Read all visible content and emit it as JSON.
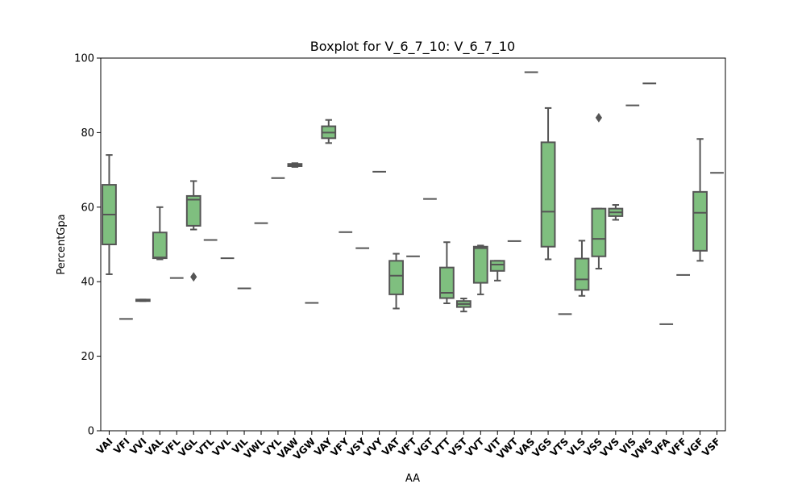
{
  "chart_data": {
    "type": "box",
    "title": "Boxplot for V_6_7_10: V_6_7_10",
    "xlabel": "AA",
    "ylabel": "PercentGpa",
    "ylim": [
      0,
      100
    ],
    "yticks": [
      0,
      20,
      40,
      60,
      80,
      100
    ],
    "grid": false,
    "box_color": "#7fbf7f",
    "line_color": "#555555",
    "categories": [
      "VAI",
      "VFI",
      "VVI",
      "VAL",
      "VFL",
      "VGL",
      "VTL",
      "VVL",
      "VIL",
      "VWL",
      "VYL",
      "VAW",
      "VGW",
      "VAY",
      "VFY",
      "VSY",
      "VVY",
      "VAT",
      "VFT",
      "VGT",
      "VTT",
      "VST",
      "VVT",
      "VIT",
      "VWT",
      "VAS",
      "VGS",
      "VTS",
      "VLS",
      "VSS",
      "VVS",
      "VIS",
      "VWS",
      "VFA",
      "VFF",
      "VGF",
      "VSF"
    ],
    "boxes": [
      {
        "label": "VAI",
        "whislo": 42,
        "q1": 50,
        "med": 58,
        "q3": 66,
        "whishi": 74,
        "fliers": []
      },
      {
        "label": "VFI",
        "whislo": 30,
        "q1": 30,
        "med": 30,
        "q3": 30,
        "whishi": 30,
        "fliers": []
      },
      {
        "label": "VVI",
        "whislo": 34.8,
        "q1": 34.8,
        "med": 35,
        "q3": 35.2,
        "whishi": 35.2,
        "fliers": []
      },
      {
        "label": "VAL",
        "whislo": 46,
        "q1": 46.3,
        "med": 46.5,
        "q3": 53.2,
        "whishi": 60,
        "fliers": []
      },
      {
        "label": "VFL",
        "whislo": 41,
        "q1": 41,
        "med": 41,
        "q3": 41,
        "whishi": 41,
        "fliers": []
      },
      {
        "label": "VGL",
        "whislo": 54,
        "q1": 55,
        "med": 62,
        "q3": 63,
        "whishi": 67,
        "fliers": [
          41.3
        ]
      },
      {
        "label": "VTL",
        "whislo": 51.2,
        "q1": 51.2,
        "med": 51.2,
        "q3": 51.2,
        "whishi": 51.2,
        "fliers": []
      },
      {
        "label": "VVL",
        "whislo": 46.3,
        "q1": 46.3,
        "med": 46.3,
        "q3": 46.3,
        "whishi": 46.3,
        "fliers": []
      },
      {
        "label": "VIL",
        "whislo": 38.2,
        "q1": 38.2,
        "med": 38.2,
        "q3": 38.2,
        "whishi": 38.2,
        "fliers": []
      },
      {
        "label": "VWL",
        "whislo": 55.7,
        "q1": 55.7,
        "med": 55.7,
        "q3": 55.7,
        "whishi": 55.7,
        "fliers": []
      },
      {
        "label": "VYL",
        "whislo": 67.8,
        "q1": 67.8,
        "med": 67.8,
        "q3": 67.8,
        "whishi": 67.8,
        "fliers": []
      },
      {
        "label": "VAW",
        "whislo": 70.8,
        "q1": 71,
        "med": 71.2,
        "q3": 71.6,
        "whishi": 71.8,
        "fliers": []
      },
      {
        "label": "VGW",
        "whislo": 34.3,
        "q1": 34.3,
        "med": 34.3,
        "q3": 34.3,
        "whishi": 34.3,
        "fliers": []
      },
      {
        "label": "VAY",
        "whislo": 77.2,
        "q1": 78.5,
        "med": 80,
        "q3": 81.7,
        "whishi": 83.4,
        "fliers": []
      },
      {
        "label": "VFY",
        "whislo": 53.3,
        "q1": 53.3,
        "med": 53.3,
        "q3": 53.3,
        "whishi": 53.3,
        "fliers": []
      },
      {
        "label": "VSY",
        "whislo": 49,
        "q1": 49,
        "med": 49,
        "q3": 49,
        "whishi": 49,
        "fliers": []
      },
      {
        "label": "VVY",
        "whislo": 69.5,
        "q1": 69.5,
        "med": 69.5,
        "q3": 69.5,
        "whishi": 69.5,
        "fliers": []
      },
      {
        "label": "VAT",
        "whislo": 32.8,
        "q1": 36.6,
        "med": 41.6,
        "q3": 45.6,
        "whishi": 47.5,
        "fliers": []
      },
      {
        "label": "VFT",
        "whislo": 46.8,
        "q1": 46.8,
        "med": 46.8,
        "q3": 46.8,
        "whishi": 46.8,
        "fliers": []
      },
      {
        "label": "VGT",
        "whislo": 62.2,
        "q1": 62.2,
        "med": 62.2,
        "q3": 62.2,
        "whishi": 62.2,
        "fliers": []
      },
      {
        "label": "VTT",
        "whislo": 34.2,
        "q1": 35.6,
        "med": 37,
        "q3": 43.8,
        "whishi": 50.6,
        "fliers": []
      },
      {
        "label": "VST",
        "whislo": 32,
        "q1": 33.2,
        "med": 34,
        "q3": 34.8,
        "whishi": 35.5,
        "fliers": []
      },
      {
        "label": "VVT",
        "whislo": 36.6,
        "q1": 39.7,
        "med": 49,
        "q3": 49.4,
        "whishi": 49.7,
        "fliers": []
      },
      {
        "label": "VIT",
        "whislo": 40.3,
        "q1": 42.9,
        "med": 44.6,
        "q3": 45.6,
        "whishi": 45.6,
        "fliers": []
      },
      {
        "label": "VWT",
        "whislo": 50.9,
        "q1": 50.9,
        "med": 50.9,
        "q3": 50.9,
        "whishi": 50.9,
        "fliers": []
      },
      {
        "label": "VAS",
        "whislo": 96.2,
        "q1": 96.2,
        "med": 96.2,
        "q3": 96.2,
        "whishi": 96.2,
        "fliers": []
      },
      {
        "label": "VGS",
        "whislo": 46,
        "q1": 49.4,
        "med": 58.8,
        "q3": 77.4,
        "whishi": 86.6,
        "fliers": []
      },
      {
        "label": "VTS",
        "whislo": 31.3,
        "q1": 31.3,
        "med": 31.3,
        "q3": 31.3,
        "whishi": 31.3,
        "fliers": []
      },
      {
        "label": "VLS",
        "whislo": 36.2,
        "q1": 37.8,
        "med": 40.6,
        "q3": 46.2,
        "whishi": 51,
        "fliers": []
      },
      {
        "label": "VSS",
        "whislo": 43.5,
        "q1": 46.8,
        "med": 51.5,
        "q3": 59.6,
        "whishi": 59.6,
        "fliers": [
          84
        ]
      },
      {
        "label": "VVS",
        "whislo": 56.6,
        "q1": 57.6,
        "med": 58.6,
        "q3": 59.6,
        "whishi": 60.6,
        "fliers": []
      },
      {
        "label": "VIS",
        "whislo": 87.3,
        "q1": 87.3,
        "med": 87.3,
        "q3": 87.3,
        "whishi": 87.3,
        "fliers": []
      },
      {
        "label": "VWS",
        "whislo": 93.2,
        "q1": 93.2,
        "med": 93.2,
        "q3": 93.2,
        "whishi": 93.2,
        "fliers": []
      },
      {
        "label": "VFA",
        "whislo": 28.6,
        "q1": 28.6,
        "med": 28.6,
        "q3": 28.6,
        "whishi": 28.6,
        "fliers": []
      },
      {
        "label": "VFF",
        "whislo": 41.8,
        "q1": 41.8,
        "med": 41.8,
        "q3": 41.8,
        "whishi": 41.8,
        "fliers": []
      },
      {
        "label": "VGF",
        "whislo": 45.6,
        "q1": 48.3,
        "med": 58.5,
        "q3": 64.1,
        "whishi": 78.3,
        "fliers": []
      },
      {
        "label": "VSF",
        "whislo": 69.2,
        "q1": 69.2,
        "med": 69.2,
        "q3": 69.2,
        "whishi": 69.2,
        "fliers": []
      }
    ]
  }
}
